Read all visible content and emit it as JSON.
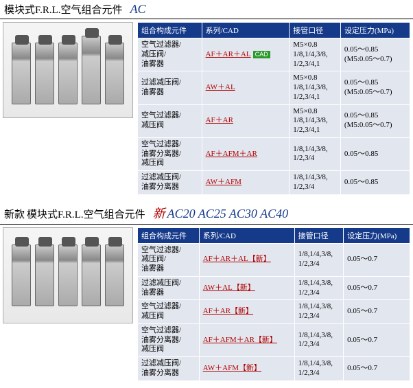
{
  "section1": {
    "title_main": "模块式F.R.L.空气组合元件",
    "title_series": "AC",
    "headers": [
      "组合构成元件",
      "系列/CAD",
      "接管口径",
      "设定压力(MPa)"
    ],
    "rows": [
      {
        "components": "空气过滤器/\n减压阀/\n油雾器",
        "series_link": "AF＋AR＋AL",
        "cad": true,
        "port": "M5×0.8\n1/8,1/4,3/8,\n1/2,3/4,1",
        "pressure": "0.05～0.85\n(M5:0.05～0.7)"
      },
      {
        "components": "过滤减压阀/\n油雾器",
        "series_link": "AW＋AL",
        "cad": false,
        "port": "M5×0.8\n1/8,1/4,3/8,\n1/2,3/4,1",
        "pressure": "0.05～0.85\n(M5:0.05～0.7)"
      },
      {
        "components": "空气过滤器/\n减压阀",
        "series_link": "AF＋AR",
        "cad": false,
        "port": "M5×0.8\n1/8,1/4,3/8,\n1/2,3/4,1",
        "pressure": "0.05～0.85\n(M5:0.05～0.7)"
      },
      {
        "components": "空气过滤器/\n油雾分离器/\n减压阀",
        "series_link": "AF＋AFM＋AR",
        "cad": false,
        "port": "1/8,1/4,3/8,\n1/2,3/4",
        "pressure": "0.05～0.85"
      },
      {
        "components": "过滤减压阀/\n油雾分离器",
        "series_link": "AW＋AFM",
        "cad": false,
        "port": "1/8,1/4,3/8,\n1/2,3/4",
        "pressure": "0.05～0.85"
      }
    ]
  },
  "section2": {
    "title_prefix": "新款",
    "title_main": "模块式F.R.L.空气组合元件",
    "title_new": "新",
    "title_models": "AC20 AC25 AC30 AC40",
    "headers": [
      "组合构成元件",
      "系列/CAD",
      "接管口径",
      "设定压力(MPa)"
    ],
    "rows": [
      {
        "components": "空气过滤器/\n减压阀/\n油雾器",
        "series_link": "AF＋AR＋AL【新】",
        "port": "1/8,1/4,3/8,\n1/2,3/4",
        "pressure": "0.05～0.7"
      },
      {
        "components": "过滤减压阀/\n油雾器",
        "series_link": "AW＋AL【新】",
        "port": "1/8,1/4,3/8,\n1/2,3/4",
        "pressure": "0.05～0.7"
      },
      {
        "components": "空气过滤器/\n减压阀",
        "series_link": "AF＋AR【新】",
        "port": "1/8,1/4,3/8,\n1/2,3/4",
        "pressure": "0.05～0.7"
      },
      {
        "components": "空气过滤器/\n油雾分离器/\n减压阀",
        "series_link": "AF＋AFM＋AR【新】",
        "port": "1/8,1/4,3/8,\n1/2,3/4",
        "pressure": "0.05～0.7"
      },
      {
        "components": "过滤减压阀/\n油雾分离器",
        "series_link": "AW＋AFM【新】",
        "port": "1/8,1/4,3/8,\n1/2,3/4",
        "pressure": "0.05～0.7"
      }
    ]
  }
}
